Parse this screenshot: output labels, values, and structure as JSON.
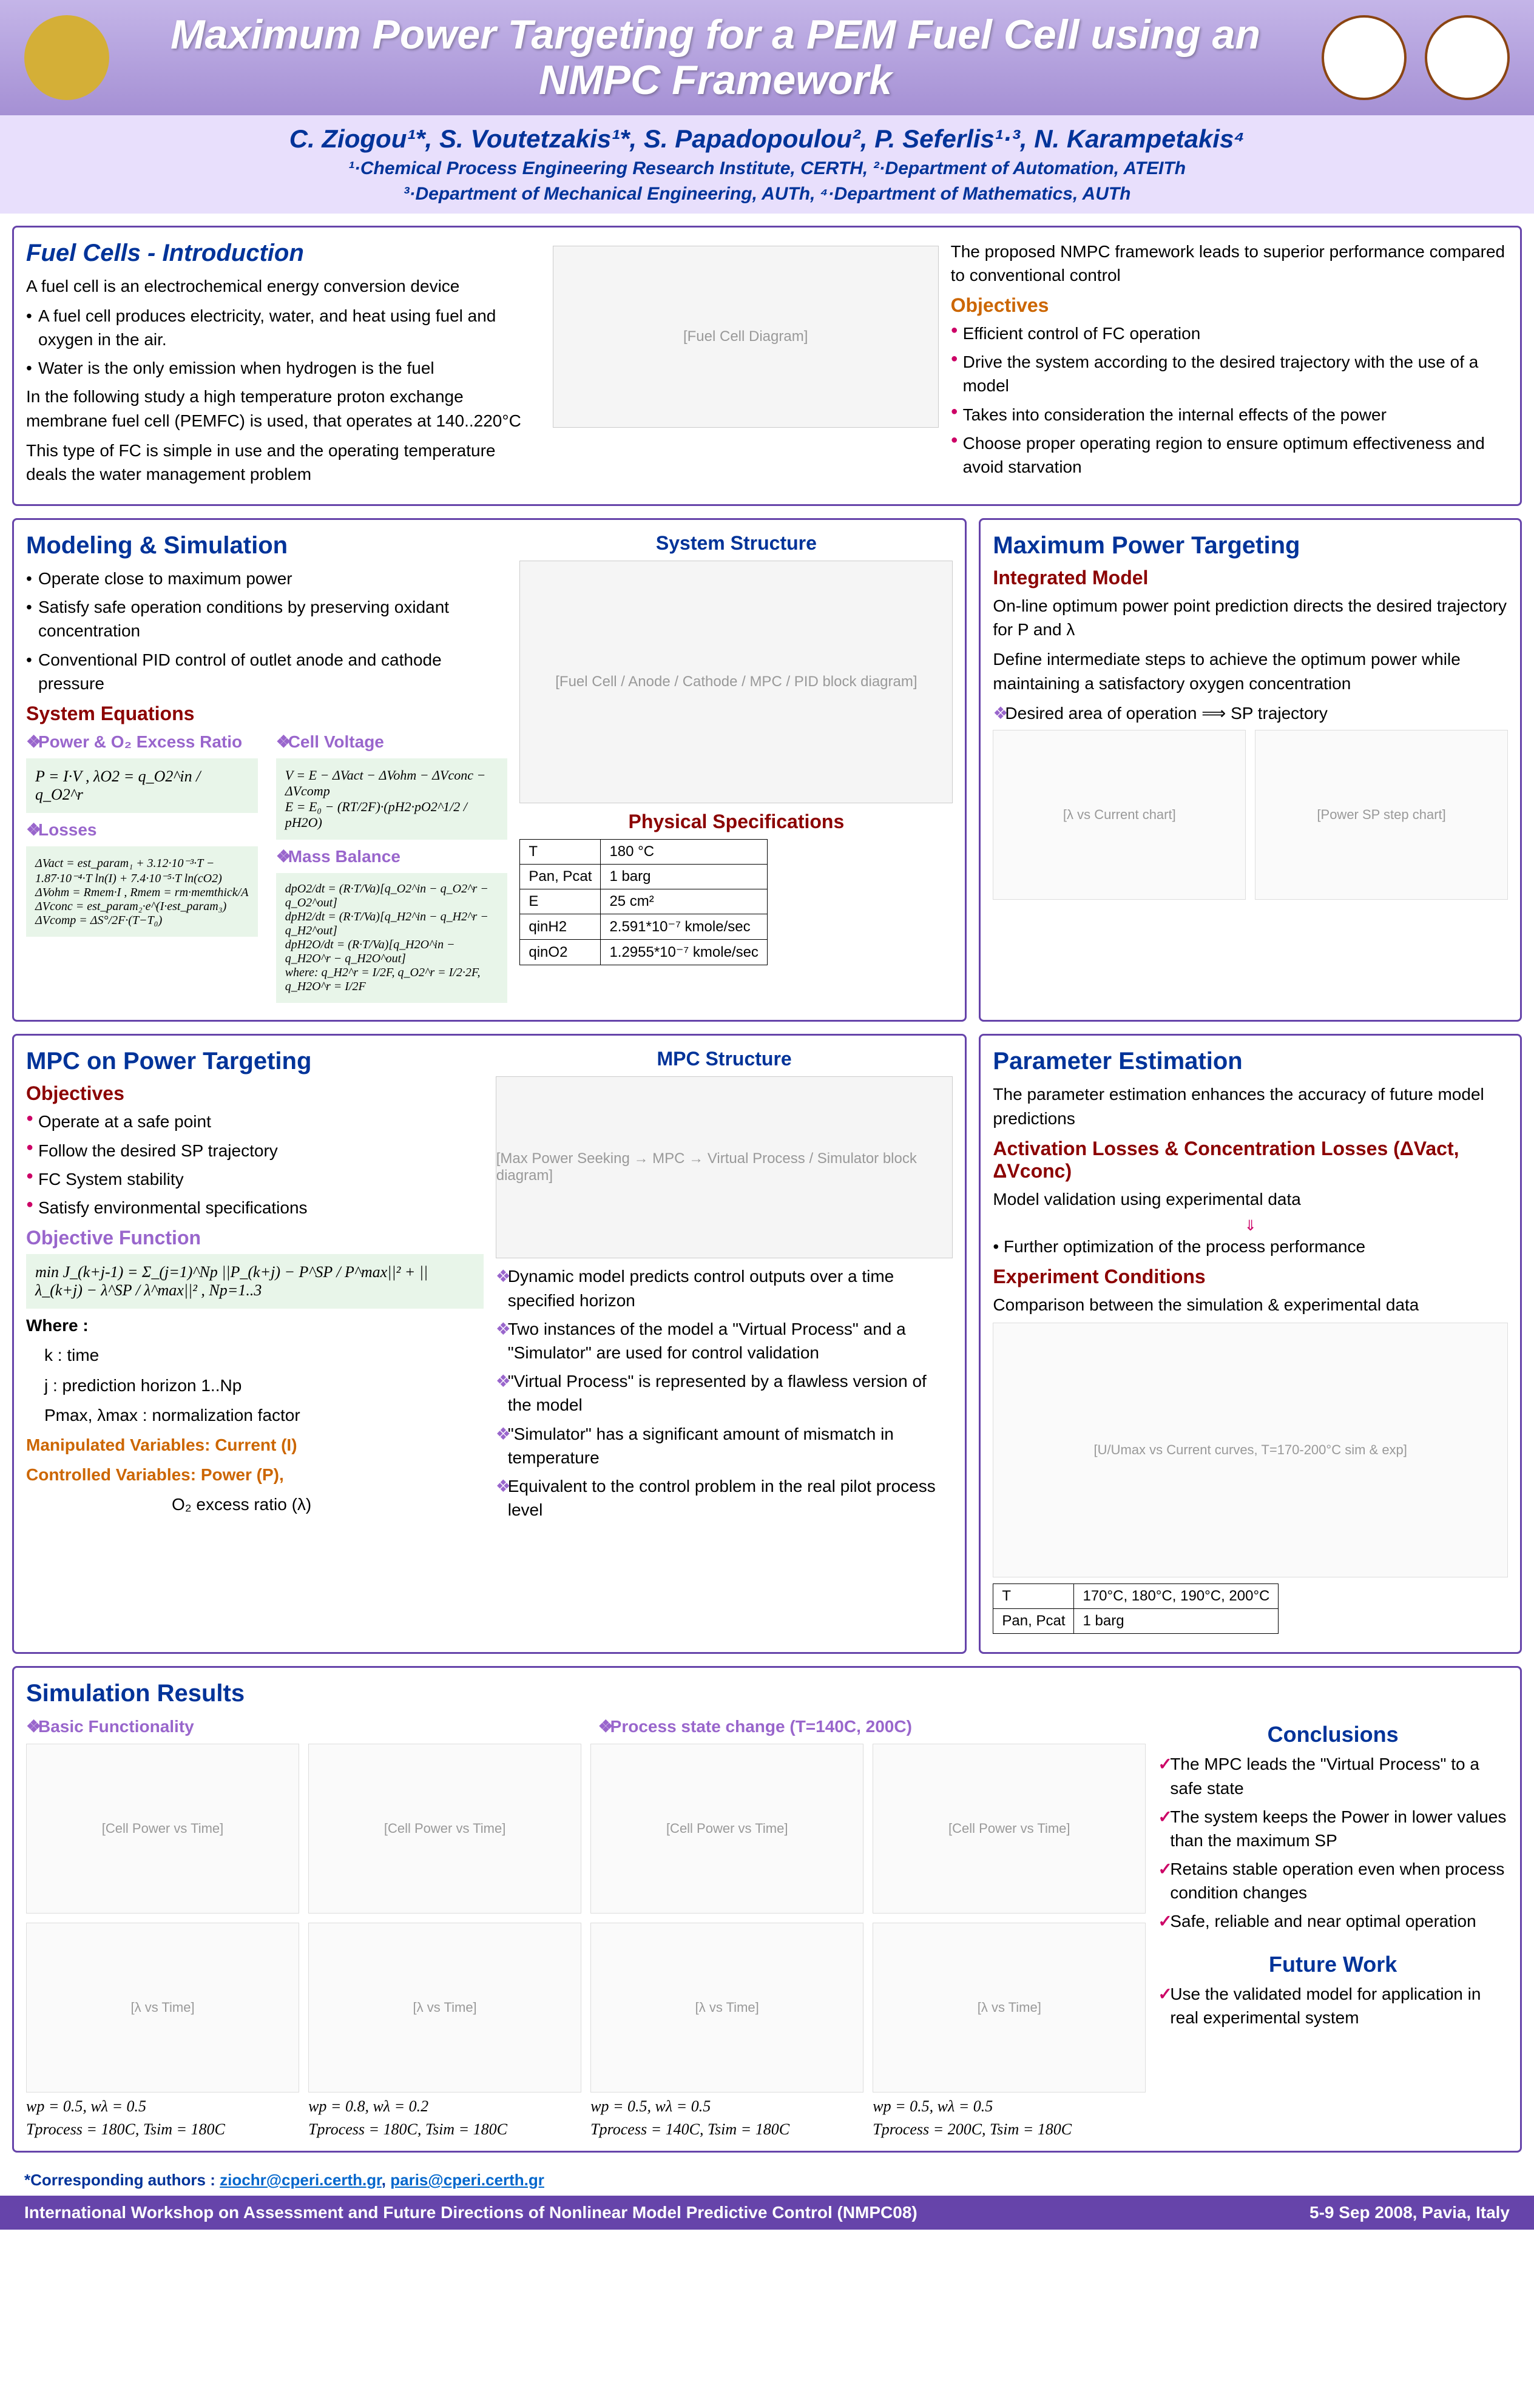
{
  "title": "Maximum Power Targeting for a PEM Fuel Cell using an NMPC Framework",
  "authors": "C. Ziogou¹*, S. Voutetzakis¹*, S. Papadopoulou², P. Seferlis¹·³, N. Karampetakis⁴",
  "affil1": "¹·Chemical Process Engineering Research Institute, CERTH,  ²·Department of Automation, ATEITh",
  "affil2": "³·Department of Mechanical Engineering, AUTh,  ⁴·Department of Mathematics, AUTh",
  "intro": {
    "title": "Fuel Cells - Introduction",
    "p1": "A fuel cell is an electrochemical energy conversion device",
    "b1": "A fuel cell produces electricity, water, and heat using fuel and oxygen in the air.",
    "b2": "Water is the only emission when hydrogen is the fuel",
    "p2": "In the following study a high temperature proton exchange membrane fuel cell (PEMFC) is used, that operates at 140..220°C",
    "p3": "This type of FC is simple in use and the operating temperature deals the water management problem",
    "objLead": "The proposed NMPC framework leads to superior performance compared to conventional control",
    "objTitle": "Objectives",
    "o1": "Efficient control of FC operation",
    "o2": "Drive the system according to the desired trajectory with the use of a model",
    "o3": "Takes into consideration the internal effects of the power",
    "o4": "Choose proper operating region to ensure optimum effectiveness and avoid starvation"
  },
  "modeling": {
    "title": "Modeling & Simulation",
    "b1": "Operate close to maximum power",
    "b2": "Satisfy safe operation conditions by preserving oxidant concentration",
    "b3": "Conventional PID control of outlet anode and cathode pressure",
    "sysEq": "System Equations",
    "power": "Power & O₂ Excess Ratio",
    "voltage": "Cell Voltage",
    "losses": "Losses",
    "mass": "Mass Balance",
    "sysStruct": "System Structure",
    "physSpec": "Physical Specifications",
    "specs": [
      [
        "T",
        "180 °C"
      ],
      [
        "Pan, Pcat",
        "1 barg"
      ],
      [
        "E",
        "25 cm²"
      ],
      [
        "qinH2",
        "2.591*10⁻⁷ kmole/sec"
      ],
      [
        "qinO2",
        "1.2955*10⁻⁷ kmole/sec"
      ]
    ],
    "eqPower": "P = I·V ,    λO2 = q_O2^in / q_O2^r",
    "eqVoltage": "V = E − ΔVact − ΔVohm − ΔVconc − ΔVcomp\nE = E₀ − (RT/2F)·(pH2·pO2^1/2 / pH2O)",
    "eqLosses": "ΔVact = est_param₁ + 3.12·10⁻³·T − 1.87·10⁻⁴·T ln(I) + 7.4·10⁻⁵·T ln(cO2)\nΔVohm = Rmem·I ,   Rmem = rm·memthick/A\nΔVconc = est_param₂·e^(I·est_param₃)\nΔVcomp = ΔS°/2F·(T−T₀)",
    "eqMass": "dpO2/dt = (R·T/Va)[q_O2^in − q_O2^r − q_O2^out]\ndpH2/dt = (R·T/Va)[q_H2^in − q_H2^r − q_H2^out]\ndpH2O/dt = (R·T/Va)[q_H2O^in − q_H2O^r − q_H2O^out]\nwhere: q_H2^r = I/2F, q_O2^r = I/2·2F, q_H2O^r = I/2F"
  },
  "maxPower": {
    "title": "Maximum Power Targeting",
    "sub": "Integrated Model",
    "p1": "On-line optimum power point prediction directs the desired trajectory for P and λ",
    "p2": "Define intermediate steps to achieve the optimum power while maintaining a satisfactory oxygen concentration",
    "b1": "Desired area of operation  ⟹  SP trajectory"
  },
  "mpc": {
    "title": "MPC on Power Targeting",
    "struct": "MPC Structure",
    "objTitle": "Objectives",
    "o1": "Operate at a safe point",
    "o2": "Follow the desired SP trajectory",
    "o3": "FC System stability",
    "o4": "Satisfy environmental specifications",
    "objFunc": "Objective Function",
    "eqObj": "min J_(k+j-1) = Σ_(j=1)^Np ||P_(k+j) − P^SP / P^max||² + ||λ_(k+j) − λ^SP / λ^max||² , Np=1..3",
    "where": "Where :",
    "w1": "k : time",
    "w2": "j : prediction horizon 1..Np",
    "w3": "Pmax, λmax : normalization factor",
    "manip": "Manipulated Variables: Current (I)",
    "ctrl": "Controlled Variables: Power (P),",
    "ctrl2": "O₂ excess ratio (λ)",
    "d1": "Dynamic model predicts control outputs over a time specified horizon",
    "d2": "Two instances of the model a \"Virtual Process\" and a \"Simulator\" are used for control validation",
    "d3": "\"Virtual Process\" is represented by a flawless version of the model",
    "d4": "\"Simulator\" has a significant amount of mismatch in temperature",
    "d5": "Equivalent to the control problem in the real pilot process level"
  },
  "param": {
    "title": "Parameter Estimation",
    "p1": "The parameter estimation enhances the accuracy of future model predictions",
    "sub1": "Activation Losses & Concentration Losses (ΔVact, ΔVconc)",
    "p2": "Model validation using experimental data",
    "p3": "• Further optimization of the process performance",
    "sub2": "Experiment Conditions",
    "p4": "Comparison between the simulation & experimental data",
    "tbl": [
      [
        "T",
        "170°C, 180°C, 190°C, 200°C"
      ],
      [
        "Pan, Pcat",
        "1 barg"
      ]
    ]
  },
  "sim": {
    "title": "Simulation Results",
    "basic": "Basic Functionality",
    "proc": "Process state change (T=140C, 200C)",
    "concl": "Conclusions",
    "c1": "The MPC leads the \"Virtual Process\" to a safe state",
    "c2": "The system keeps the Power in lower values than the maximum SP",
    "c3": "Retains stable operation even when process condition changes",
    "c4": "Safe, reliable and near optimal operation",
    "future": "Future Work",
    "f1": "Use the validated model for application in real experimental system",
    "params": [
      "wp = 0.5, wλ = 0.5",
      "wp = 0.8, wλ = 0.2",
      "wp = 0.5, wλ = 0.5",
      "wp = 0.5, wλ = 0.5"
    ],
    "temps": [
      "Tprocess = 180C, Tsim = 180C",
      "Tprocess = 180C, Tsim = 180C",
      "Tprocess = 140C, Tsim = 180C",
      "Tprocess = 200C, Tsim = 180C"
    ]
  },
  "corresp": "*Corresponding authors : ",
  "email1": "ziochr@cperi.certh.gr",
  "email2": "paris@cperi.certh.gr",
  "footer1": "International Workshop on Assessment and Future Directions of Nonlinear Model Predictive Control (NMPC08)",
  "footer2": "5-9 Sep 2008, Pavia, Italy"
}
